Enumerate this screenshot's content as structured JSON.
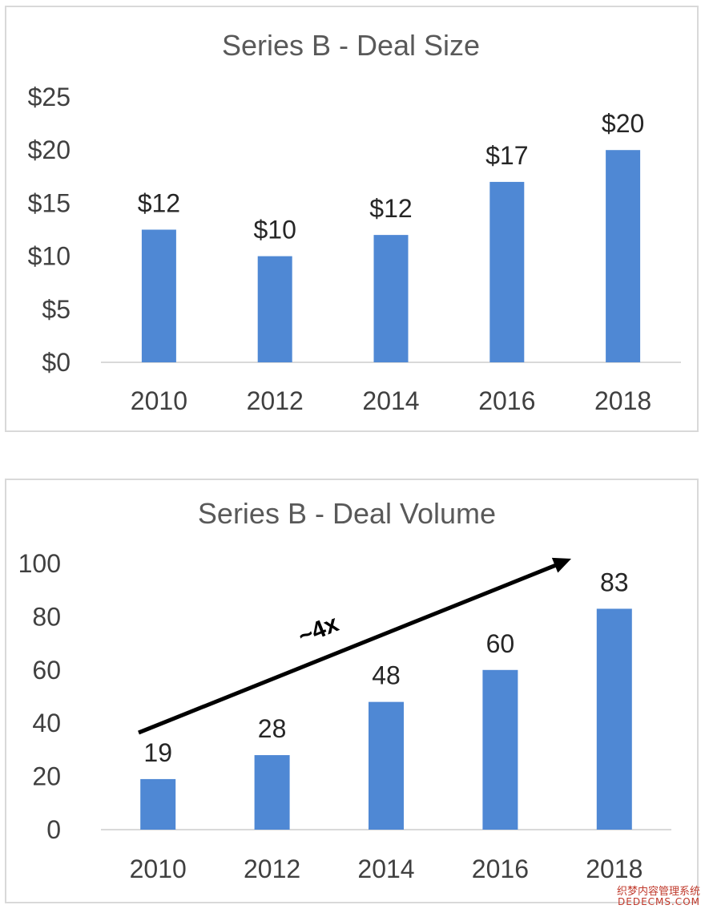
{
  "chart_data": [
    {
      "type": "bar",
      "title": "Series B - Deal Size",
      "categories": [
        "2010",
        "2012",
        "2014",
        "2016",
        "2018"
      ],
      "values": [
        12.5,
        10,
        12,
        17,
        20
      ],
      "data_labels": [
        "$12",
        "$10",
        "$12",
        "$17",
        "$20"
      ],
      "ylim": [
        0,
        25
      ],
      "yticks": [
        0,
        5,
        10,
        15,
        20,
        25
      ],
      "ytick_labels": [
        "$0",
        "$5",
        "$10",
        "$15",
        "$20",
        "$25"
      ],
      "xlabel": "",
      "ylabel": "",
      "grid": false,
      "bar_color": "#4f88d4"
    },
    {
      "type": "bar",
      "title": "Series B - Deal Volume",
      "categories": [
        "2010",
        "2012",
        "2014",
        "2016",
        "2018"
      ],
      "values": [
        19,
        28,
        48,
        60,
        83
      ],
      "data_labels": [
        "19",
        "28",
        "48",
        "60",
        "83"
      ],
      "ylim": [
        0,
        100
      ],
      "yticks": [
        0,
        20,
        40,
        60,
        80,
        100
      ],
      "ytick_labels": [
        "0",
        "20",
        "40",
        "60",
        "80",
        "100"
      ],
      "xlabel": "",
      "ylabel": "",
      "grid": false,
      "bar_color": "#4f88d4",
      "annotation": {
        "text": "~4x",
        "arrow": "trend arrow from 2010 rising to 2018"
      }
    }
  ],
  "watermark": {
    "line1": "织梦内容管理系统",
    "line2": "DEDECMS.COM"
  }
}
